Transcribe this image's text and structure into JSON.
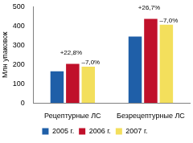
{
  "chart_data": {
    "type": "bar",
    "y_label": "Млн упаковок",
    "categories": [
      "Рецептурные ЛС",
      "Безрецептурные ЛС"
    ],
    "series": [
      {
        "name": "2005 г.",
        "color": "#1f5fa8",
        "values": [
          165,
          345
        ]
      },
      {
        "name": "2006 г.",
        "color": "#c0102a",
        "values": [
          203,
          437
        ]
      },
      {
        "name": "2007 г.",
        "color": "#f3df5c",
        "values": [
          189,
          407
        ]
      }
    ],
    "annotations": [
      {
        "category": "Рецептурные ЛС",
        "series": "2006 г.",
        "text": "+22,8%"
      },
      {
        "category": "Рецептурные ЛС",
        "series": "2007 г.",
        "text": "–7,0%"
      },
      {
        "category": "Безрецептурные ЛС",
        "series": "2006 г.",
        "text": "+26,7%"
      },
      {
        "category": "Безрецептурные ЛС",
        "series": "2007 г.",
        "text": "–7,0%"
      }
    ],
    "ylim": [
      0,
      500
    ],
    "yticks": [
      0,
      100,
      200,
      300,
      400,
      500
    ],
    "grid": false,
    "legend": "bottom"
  }
}
